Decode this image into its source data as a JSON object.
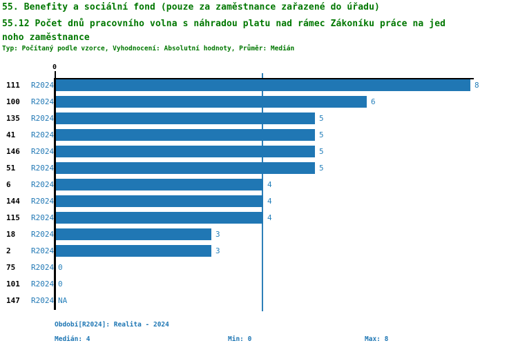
{
  "header": {
    "title_line1": "55. Benefity a sociální fond (pouze za zaměstnance zařazené do úřadu)",
    "title_line2": "55.12 Počet dnů pracovního volna s náhradou platu nad rámec Zákoníku práce na jed",
    "title_line3": "noho zaměstnance",
    "subtitle": "Typ: Počítaný podle vzorce, Vyhodnocení: Absolutní hodnoty, Průměr: Medián"
  },
  "chart_data": {
    "type": "bar",
    "orientation": "horizontal",
    "title": "55.12 Počet dnů pracovního volna s náhradou platu nad rámec Zákoníku práce na jednoho zaměstnance",
    "xlabel": "",
    "ylabel": "",
    "xlim": [
      0,
      8
    ],
    "x_tick_labels": [
      "0"
    ],
    "grid": false,
    "legend_position": "none",
    "median_reference_value": 4,
    "series_name": "R2024",
    "categories": [
      "111",
      "100",
      "135",
      "41",
      "146",
      "51",
      "6",
      "144",
      "115",
      "18",
      "2",
      "75",
      "101",
      "147"
    ],
    "period_labels": [
      "R2024",
      "R2024",
      "R2024",
      "R2024",
      "R2024",
      "R2024",
      "R2024",
      "R2024",
      "R2024",
      "R2024",
      "R2024",
      "R2024",
      "R2024",
      "R2024"
    ],
    "values": [
      8,
      6,
      5,
      5,
      5,
      5,
      4,
      4,
      4,
      3,
      3,
      0,
      0,
      null
    ],
    "value_labels": [
      "8",
      "6",
      "5",
      "5",
      "5",
      "5",
      "4",
      "4",
      "4",
      "3",
      "3",
      "0",
      "0",
      "NA"
    ]
  },
  "footer": {
    "period": "Období[R2024]: Realita - 2024",
    "median": "Medián: 4",
    "min": "Min: 0",
    "max": "Max: 8"
  },
  "colors": {
    "bar": "#2077b4",
    "median_line": "#2e7fb8",
    "blue_text": "#1f77b4",
    "title_green": "#007700",
    "axis": "#000000"
  }
}
